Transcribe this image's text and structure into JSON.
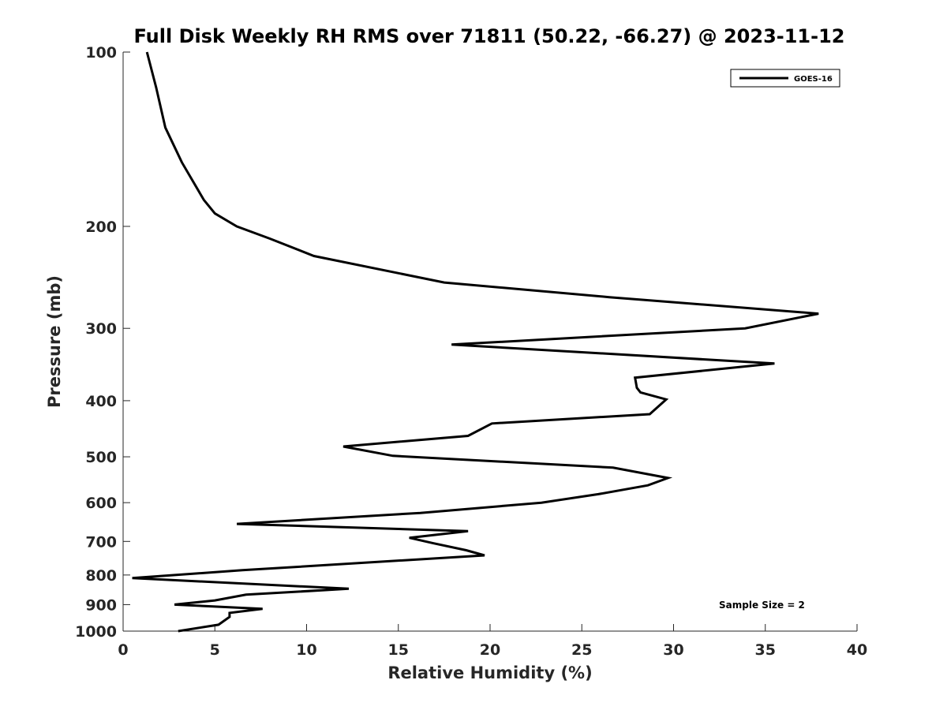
{
  "chart_data": {
    "type": "line",
    "title": "Full Disk Weekly RH RMS over 71811 (50.22, -66.27) @ 2023-11-12",
    "xlabel": "Relative Humidity (%)",
    "ylabel": "Pressure (mb)",
    "xlim": [
      0,
      40
    ],
    "ylim": [
      100,
      1000
    ],
    "y_scale": "log",
    "y_reversed": true,
    "xticks": [
      0,
      5,
      10,
      15,
      20,
      25,
      30,
      35,
      40
    ],
    "yticks": [
      100,
      200,
      300,
      400,
      500,
      600,
      700,
      800,
      900,
      1000
    ],
    "grid": false,
    "legend_position": "top-right",
    "annotation": "Sample Size = 2",
    "series": [
      {
        "name": "GOES-16",
        "color": "#000000",
        "points": [
          [
            1.3,
            100
          ],
          [
            1.8,
            115
          ],
          [
            2.3,
            135
          ],
          [
            3.2,
            155
          ],
          [
            4.4,
            180
          ],
          [
            5.0,
            190
          ],
          [
            6.2,
            200
          ],
          [
            8.0,
            210
          ],
          [
            10.4,
            225
          ],
          [
            17.5,
            250
          ],
          [
            26.5,
            265
          ],
          [
            37.9,
            283
          ],
          [
            33.9,
            300
          ],
          [
            17.9,
            320
          ],
          [
            35.5,
            345
          ],
          [
            27.9,
            365
          ],
          [
            28.0,
            380
          ],
          [
            28.2,
            387
          ],
          [
            29.6,
            398
          ],
          [
            28.7,
            422
          ],
          [
            20.1,
            438
          ],
          [
            18.8,
            460
          ],
          [
            12.0,
            480
          ],
          [
            14.7,
            498
          ],
          [
            26.7,
            522
          ],
          [
            29.7,
            544
          ],
          [
            28.6,
            560
          ],
          [
            25.9,
            580
          ],
          [
            22.8,
            600
          ],
          [
            16.2,
            625
          ],
          [
            6.2,
            653
          ],
          [
            18.8,
            672
          ],
          [
            15.6,
            690
          ],
          [
            16.9,
            705
          ],
          [
            18.7,
            725
          ],
          [
            19.7,
            740
          ],
          [
            6.5,
            785
          ],
          [
            0.5,
            810
          ],
          [
            12.3,
            845
          ],
          [
            6.7,
            865
          ],
          [
            5.0,
            885
          ],
          [
            2.8,
            900
          ],
          [
            7.6,
            915
          ],
          [
            5.8,
            930
          ],
          [
            5.8,
            945
          ],
          [
            5.2,
            975
          ],
          [
            3.0,
            1000
          ]
        ]
      }
    ]
  }
}
